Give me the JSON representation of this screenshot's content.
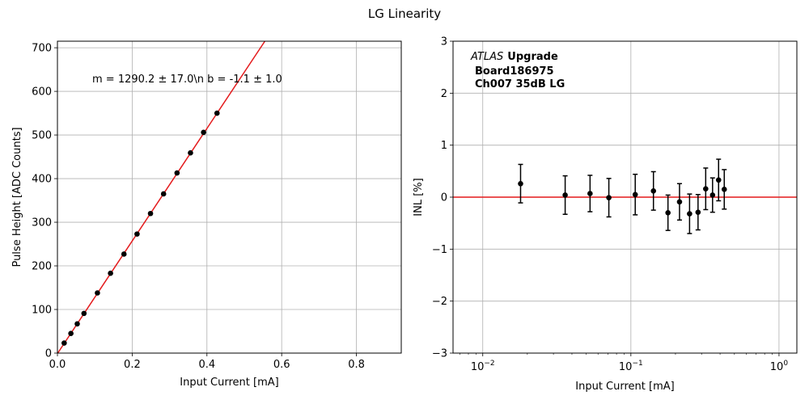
{
  "figure": {
    "title": "LG Linearity"
  },
  "chart_data": [
    {
      "type": "scatter",
      "xlabel": "Input Current [mA]",
      "ylabel": "Pulse Height [ADC Counts]",
      "xlim": [
        0,
        0.92
      ],
      "ylim": [
        0,
        715
      ],
      "xticks": [
        0.0,
        0.2,
        0.4,
        0.6,
        0.8
      ],
      "xtick_labels": [
        "0.0",
        "0.2",
        "0.4",
        "0.6",
        "0.8"
      ],
      "yticks": [
        0,
        100,
        200,
        300,
        400,
        500,
        600,
        700
      ],
      "ytick_labels": [
        "0",
        "100",
        "200",
        "300",
        "400",
        "500",
        "600",
        "700"
      ],
      "grid": true,
      "annotation": "m = 1290.2 ± 17.0\\n b = -1.1 ± 1.0",
      "fit": {
        "slope": 1290.2,
        "intercept": -1.1,
        "color": "#e41a1c"
      },
      "points": {
        "x": [
          0.018,
          0.036,
          0.053,
          0.071,
          0.107,
          0.142,
          0.178,
          0.213,
          0.249,
          0.284,
          0.32,
          0.356,
          0.391,
          0.427
        ],
        "y": [
          23,
          45,
          67,
          91,
          138,
          183,
          227,
          273,
          320,
          365,
          413,
          459,
          506,
          550
        ],
        "color": "#000000"
      }
    },
    {
      "type": "scatter",
      "xlabel": "Input Current [mA]",
      "ylabel": "INL [%]",
      "xscale": "log",
      "xlim": [
        0.0063,
        1.32
      ],
      "ylim": [
        -3,
        3
      ],
      "xticks": [
        0.01,
        0.1,
        1
      ],
      "xtick_labels": [
        {
          "base": "10",
          "exp": "−2"
        },
        {
          "base": "10",
          "exp": "−1"
        },
        {
          "base": "10",
          "exp": "0"
        }
      ],
      "yticks": [
        -3,
        -2,
        -1,
        0,
        1,
        2,
        3
      ],
      "ytick_labels": [
        "−3",
        "−2",
        "−1",
        "0",
        "1",
        "2",
        "3"
      ],
      "grid": true,
      "reference_line": {
        "y": 0,
        "color": "#e41a1c"
      },
      "annotation": {
        "experiment": "ATLAS",
        "label": "Upgrade",
        "board": "Board186975",
        "channel": "Ch007 35dB LG"
      },
      "points": {
        "x": [
          0.018,
          0.036,
          0.053,
          0.071,
          0.107,
          0.142,
          0.178,
          0.213,
          0.249,
          0.284,
          0.32,
          0.356,
          0.391,
          0.427
        ],
        "y": [
          0.26,
          0.04,
          0.07,
          -0.01,
          0.05,
          0.12,
          -0.3,
          -0.09,
          -0.32,
          -0.29,
          0.16,
          0.04,
          0.33,
          0.15
        ],
        "yerr": [
          0.37,
          0.37,
          0.35,
          0.37,
          0.39,
          0.37,
          0.34,
          0.35,
          0.38,
          0.34,
          0.4,
          0.33,
          0.4,
          0.38
        ],
        "color": "#000000"
      }
    }
  ]
}
